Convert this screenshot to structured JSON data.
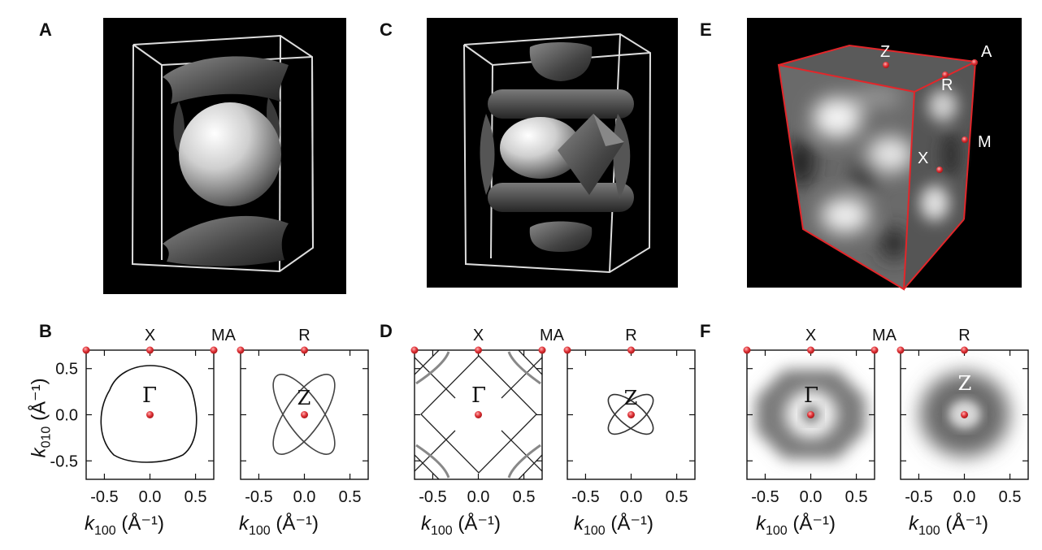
{
  "panel_labels": [
    "A",
    "B",
    "C",
    "D",
    "E",
    "F"
  ],
  "points": {
    "X": "X",
    "MA": "MA",
    "R": "R",
    "M": "M",
    "A": "A",
    "Z": "Z",
    "Gamma": "Γ"
  },
  "axes": {
    "xticks": [
      "-0.5",
      "0.0",
      "0.5"
    ],
    "yticks": [
      "0.5",
      "0.0",
      "-0.5"
    ],
    "ylabel_main": "k",
    "ylabel_sub": "010",
    "ylabel_unit": " (Å⁻¹)",
    "xlabel_main": "k",
    "xlabel_sub": "100",
    "xlabel_unit": " (Å⁻¹)"
  },
  "colors": {
    "marker": "#e0343a",
    "box_white": "#ffffff",
    "box_red": "#e3262a",
    "background": "#000000"
  }
}
